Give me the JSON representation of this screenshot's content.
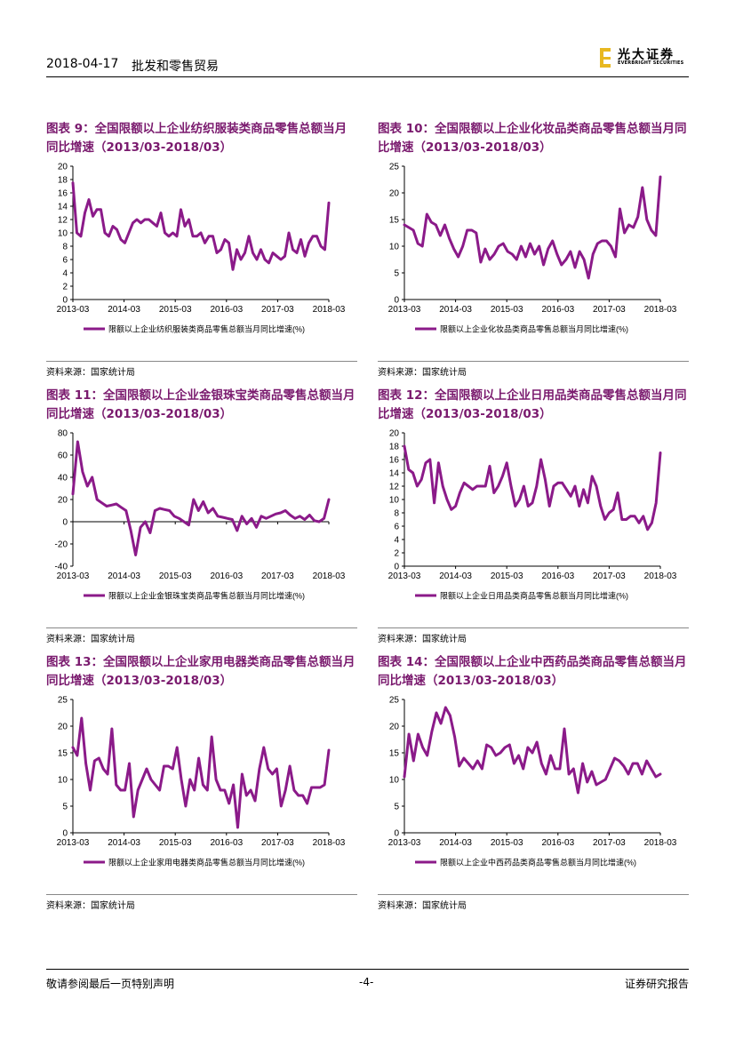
{
  "header": {
    "date": "2018-04-17",
    "sector": "批发和零售贸易",
    "logo_cn": "光大证券",
    "logo_en": "EVERBRIGHT SECURITIES"
  },
  "colors": {
    "series": "#8b1a89",
    "title": "#7a1a6e",
    "axis": "#000000"
  },
  "panels": [
    {
      "title": "图表 9：全国限额以上企业纺织服装类商品零售总额当月同比增速（2013/03-2018/03）",
      "source": "资料来源：国家统计局"
    },
    {
      "title": "图表 10：全国限额以上企业化妆品类商品零售总额当月同比增速（2013/03-2018/03）",
      "source": "资料来源：国家统计局"
    },
    {
      "title": "图表 11：全国限额以上企业金银珠宝类商品零售总额当月同比增速（2013/03-2018/03）",
      "source": "资料来源：国家统计局"
    },
    {
      "title": "图表 12：全国限额以上企业日用品类商品零售总额当月同比增速（2013/03-2018/03）",
      "source": "资料来源：国家统计局"
    },
    {
      "title": "图表 13：全国限额以上企业家用电器类商品零售总额当月同比增速（2013/03-2018/03）",
      "source": "资料来源：国家统计局"
    },
    {
      "title": "图表 14：全国限额以上企业中西药品类商品零售总额当月同比增速（2013/03-2018/03）",
      "source": "资料来源：国家统计局"
    }
  ],
  "chart_data": [
    {
      "type": "line",
      "xlabels": [
        "2013-03",
        "2014-03",
        "2015-03",
        "2016-03",
        "2017-03",
        "2018-03"
      ],
      "ylim": [
        0,
        20
      ],
      "yticks": [
        0,
        2,
        4,
        6,
        8,
        10,
        12,
        14,
        16,
        18,
        20
      ],
      "series": [
        {
          "name": "限额以上企业纺织服装类商品零售总额当月同比增速(%)",
          "values": [
            17.5,
            10,
            9.5,
            13,
            15,
            12.5,
            13.5,
            13.5,
            10,
            9.5,
            11,
            10.5,
            9,
            8.5,
            10,
            11.5,
            12,
            11.5,
            12,
            12,
            11.5,
            11,
            13,
            10,
            9.5,
            10,
            9.5,
            13.5,
            11,
            12,
            9.5,
            9.5,
            10,
            8.5,
            9.5,
            9.5,
            7,
            7.5,
            9,
            8.5,
            4.5,
            7.5,
            6,
            7,
            9.5,
            7,
            6,
            7.5,
            6,
            5.5,
            7,
            6.5,
            6,
            6.5,
            10,
            7.5,
            7,
            9,
            6.5,
            8.5,
            9.5,
            9.5,
            8,
            7.5,
            14.5
          ]
        }
      ]
    },
    {
      "type": "line",
      "xlabels": [
        "2013-03",
        "2014-03",
        "2015-03",
        "2016-03",
        "2017-03",
        "2018-03"
      ],
      "ylim": [
        0,
        25
      ],
      "yticks": [
        0,
        5,
        10,
        15,
        20,
        25
      ],
      "series": [
        {
          "name": "限额以上企业化妆品类商品零售总额当月同比增速(%)",
          "values": [
            14,
            13.5,
            13,
            10.5,
            10,
            16,
            14.5,
            14,
            12,
            14,
            11.5,
            9.5,
            8,
            10,
            13,
            13,
            12.5,
            7,
            9.5,
            7.5,
            8.5,
            10,
            10.5,
            9,
            8.5,
            7.5,
            10,
            8,
            10.5,
            8.5,
            10,
            6.5,
            9.5,
            11,
            8.5,
            6.5,
            7.5,
            9,
            6,
            9,
            7.5,
            4,
            8.5,
            10.5,
            11,
            11,
            10,
            8,
            17,
            12.5,
            14,
            13.5,
            15.5,
            21,
            15,
            13,
            12,
            23
          ]
        }
      ]
    },
    {
      "type": "line",
      "xlabels": [
        "2013-03",
        "2014-03",
        "2015-03",
        "2016-03",
        "2017-03",
        "2018-03"
      ],
      "ylim": [
        -40,
        80
      ],
      "yticks": [
        -40,
        -20,
        0,
        20,
        40,
        60,
        80
      ],
      "series": [
        {
          "name": "限额以上企业金银珠宝类商品零售总额当月同比增速(%)",
          "values": [
            25,
            72,
            45,
            32,
            40,
            20,
            17,
            14,
            15,
            16,
            13,
            10,
            -8,
            -30,
            -5,
            0,
            -10,
            10,
            12,
            11,
            10,
            5,
            3,
            0,
            -3,
            20,
            10,
            18,
            8,
            12,
            5,
            4,
            3,
            2,
            -8,
            5,
            -2,
            3,
            -5,
            5,
            3,
            5,
            7,
            8,
            10,
            6,
            3,
            5,
            2,
            6,
            1,
            0,
            3,
            20
          ]
        }
      ]
    },
    {
      "type": "line",
      "xlabels": [
        "2013-03",
        "2014-03",
        "2015-03",
        "2016-03",
        "2017-03",
        "2018-03"
      ],
      "ylim": [
        0,
        20
      ],
      "yticks": [
        0,
        2,
        4,
        6,
        8,
        10,
        12,
        14,
        16,
        18,
        20
      ],
      "series": [
        {
          "name": "限额以上企业日用品类商品零售总额当月同比增速(%)",
          "values": [
            18,
            14.5,
            14,
            12,
            13,
            15.5,
            16,
            9.5,
            15.5,
            12,
            10,
            8.5,
            9,
            11,
            12.5,
            12,
            11.5,
            12,
            12,
            12,
            15,
            11,
            12,
            13.5,
            15.5,
            12,
            9,
            10,
            12,
            9,
            9.5,
            12,
            16,
            13,
            9,
            12,
            12.5,
            12.5,
            11.5,
            10.5,
            12,
            9,
            11.5,
            9.5,
            13.5,
            12,
            9,
            7,
            8,
            8.5,
            11,
            7,
            7,
            7.5,
            7.5,
            6.5,
            7.5,
            5.5,
            6.5,
            9.5,
            17
          ]
        }
      ]
    },
    {
      "type": "line",
      "xlabels": [
        "2013-03",
        "2014-03",
        "2015-03",
        "2016-03",
        "2017-03",
        "2018-03"
      ],
      "ylim": [
        0,
        25
      ],
      "yticks": [
        0,
        5,
        10,
        15,
        20,
        25
      ],
      "series": [
        {
          "name": "限额以上企业家用电器类商品零售总额当月同比增速(%)",
          "values": [
            16,
            14.5,
            21.5,
            13,
            8,
            13.5,
            14,
            12,
            11,
            19.5,
            9,
            8,
            8,
            13,
            3,
            8,
            10,
            12,
            10,
            9,
            8,
            12.5,
            12.5,
            12,
            16,
            10,
            5,
            10,
            8,
            14,
            9,
            8,
            18,
            10,
            8,
            8,
            5.5,
            9,
            1,
            11,
            7,
            8,
            6,
            12,
            16,
            12,
            11,
            12,
            5,
            8,
            12.5,
            8,
            7,
            7,
            5.5,
            8.5,
            8.5,
            8.5,
            9,
            15.5
          ]
        }
      ]
    },
    {
      "type": "line",
      "xlabels": [
        "2013-03",
        "2014-03",
        "2015-03",
        "2016-03",
        "2017-03",
        "2018-03"
      ],
      "ylim": [
        0,
        25
      ],
      "yticks": [
        0,
        5,
        10,
        15,
        20,
        25
      ],
      "series": [
        {
          "name": "限额以上企业中西药品类商品零售总额当月同比增速(%)",
          "values": [
            10.5,
            18.5,
            13.5,
            18.5,
            16,
            14.5,
            19,
            22.5,
            20.5,
            23.5,
            22,
            18,
            12.5,
            14,
            13,
            12,
            13.5,
            12,
            16.5,
            16,
            14.5,
            15,
            16,
            16.5,
            13,
            14.5,
            12,
            16,
            15,
            17,
            13,
            11,
            14.5,
            12,
            12,
            19.5,
            11,
            12,
            7.5,
            13,
            9.5,
            11.5,
            9,
            9.5,
            10,
            12,
            14,
            13.5,
            12.5,
            11,
            13,
            13,
            11,
            13.5,
            12,
            10.5,
            11
          ]
        }
      ]
    }
  ],
  "footer": {
    "disclaimer": "敬请参阅最后一页特别声明",
    "page": "-4-",
    "report": "证券研究报告"
  }
}
